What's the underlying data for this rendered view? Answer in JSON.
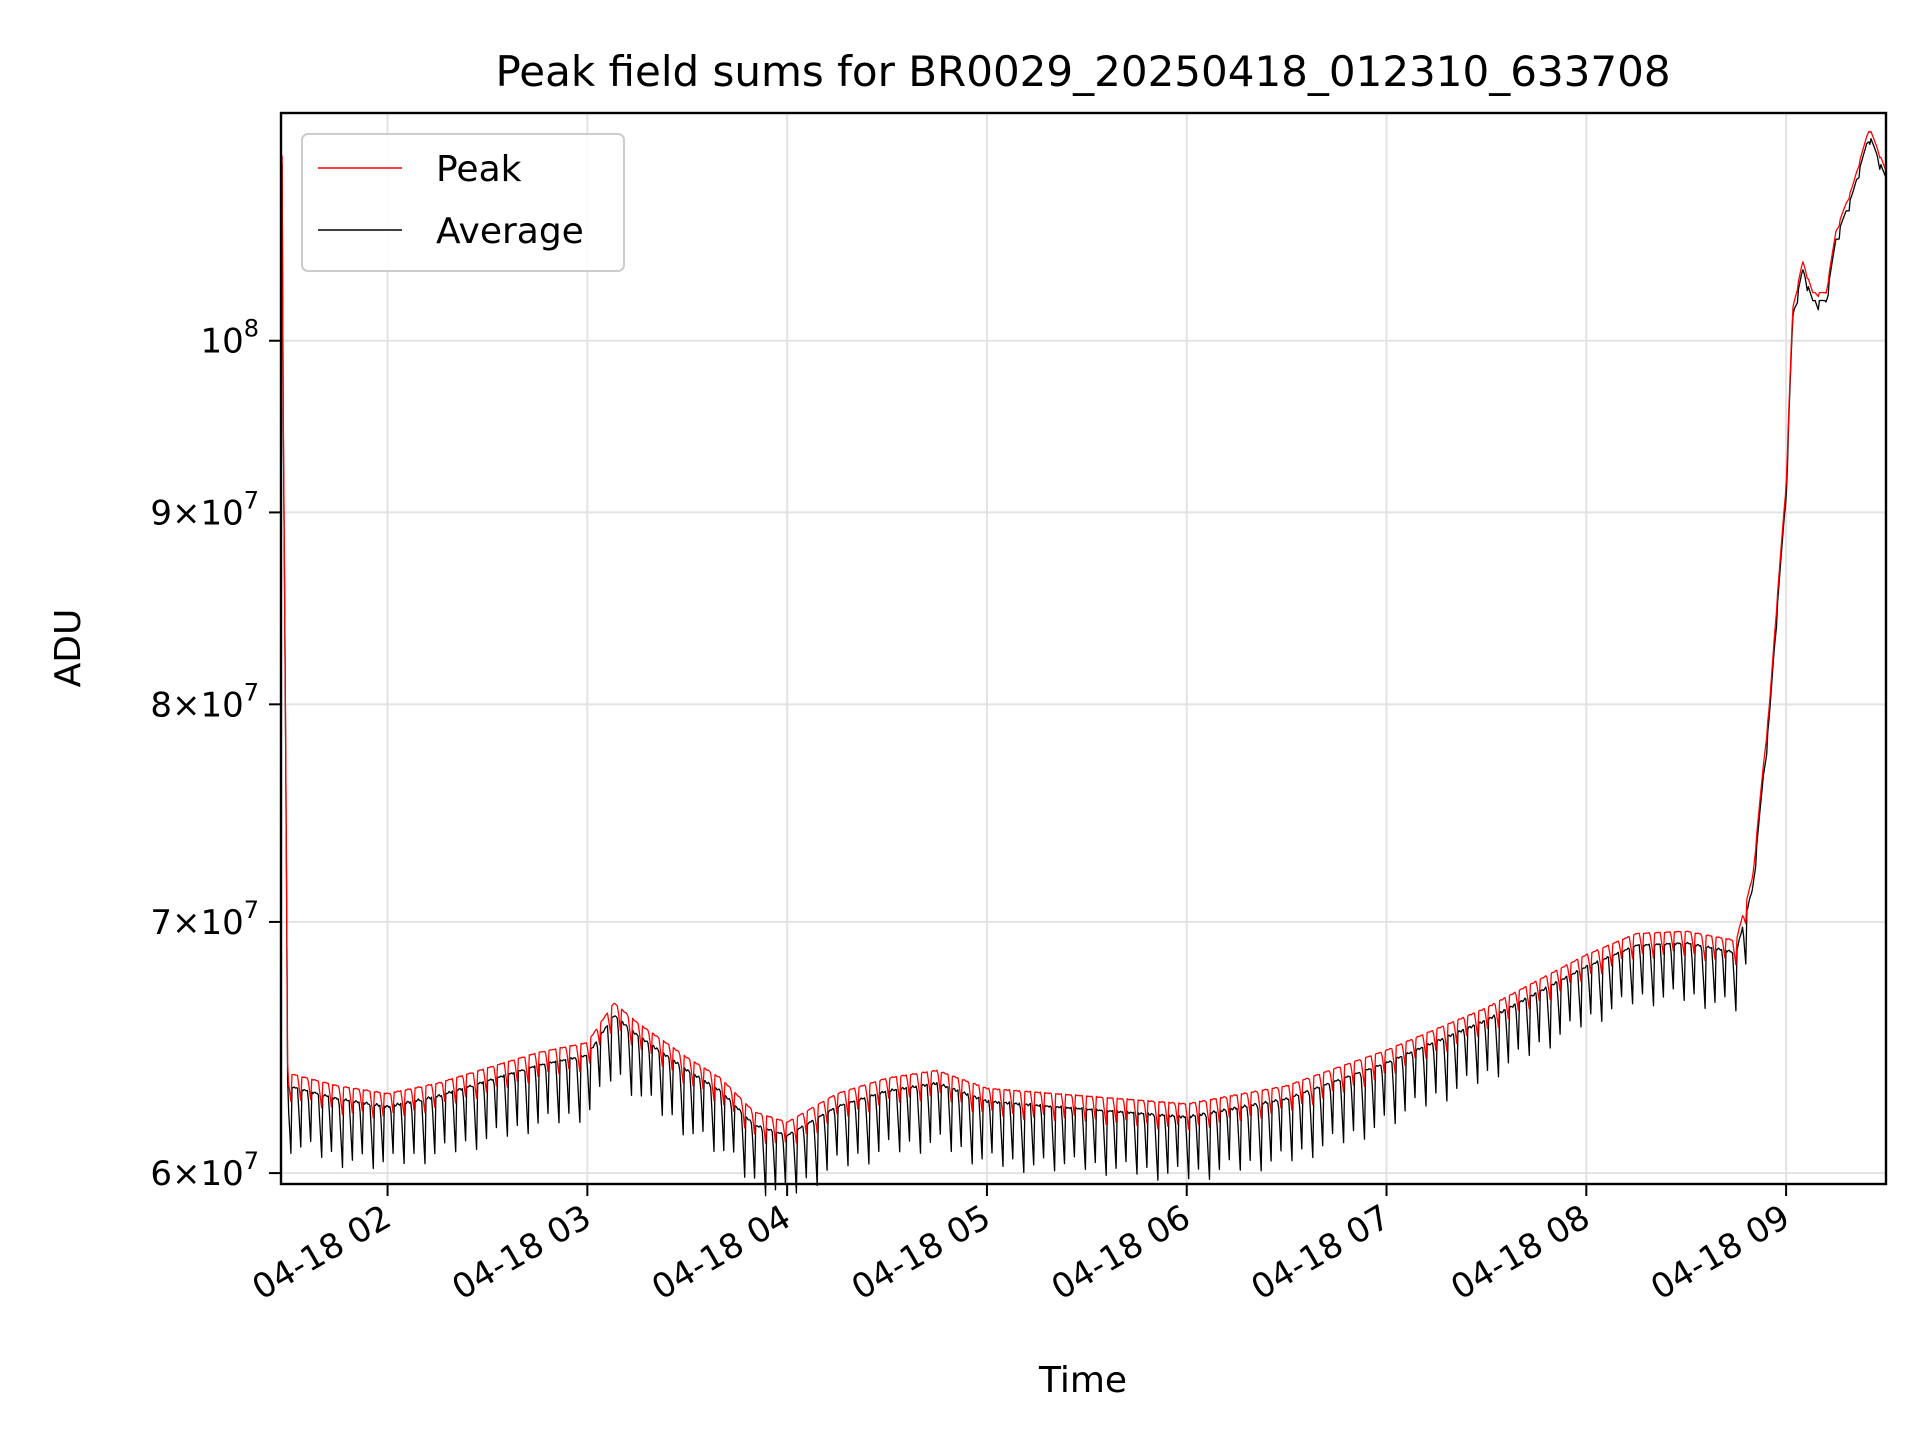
{
  "chart_data": {
    "type": "line",
    "title": "Peak field sums for BR0029_20250418_012310_633708",
    "xlabel": "Time",
    "ylabel": "ADU",
    "yscale": "log",
    "xlim": [
      "2025-04-18 01:28",
      "2025-04-18 09:30"
    ],
    "ylim": [
      59600000,
      115000000
    ],
    "grid": true,
    "legend_position": "upper-left",
    "x_ticks": [
      {
        "t": "2025-04-18 02:00",
        "label": "04-18 02"
      },
      {
        "t": "2025-04-18 03:00",
        "label": "04-18 03"
      },
      {
        "t": "2025-04-18 04:00",
        "label": "04-18 04"
      },
      {
        "t": "2025-04-18 05:00",
        "label": "04-18 05"
      },
      {
        "t": "2025-04-18 06:00",
        "label": "04-18 06"
      },
      {
        "t": "2025-04-18 07:00",
        "label": "04-18 07"
      },
      {
        "t": "2025-04-18 08:00",
        "label": "04-18 08"
      },
      {
        "t": "2025-04-18 09:00",
        "label": "04-18 09"
      }
    ],
    "y_ticks": [
      {
        "value": 60000000,
        "mantissa": "6",
        "exponent": "7"
      },
      {
        "value": 70000000,
        "mantissa": "7",
        "exponent": "7"
      },
      {
        "value": 80000000,
        "mantissa": "8",
        "exponent": "7"
      },
      {
        "value": 90000000,
        "mantissa": "9",
        "exponent": "7"
      },
      {
        "value": 100000000,
        "mantissa": "",
        "exponent": "8"
      }
    ],
    "series": [
      {
        "name": "Peak",
        "color": "#ff0000",
        "trend_x": [
          "2025-04-18 01:28",
          "2025-04-18 01:30",
          "2025-04-18 01:45",
          "2025-04-18 02:00",
          "2025-04-18 02:15",
          "2025-04-18 02:30",
          "2025-04-18 02:45",
          "2025-04-18 03:00",
          "2025-04-18 03:08",
          "2025-04-18 03:15",
          "2025-04-18 03:30",
          "2025-04-18 03:40",
          "2025-04-18 03:50",
          "2025-04-18 04:00",
          "2025-04-18 04:15",
          "2025-04-18 04:30",
          "2025-04-18 04:45",
          "2025-04-18 05:00",
          "2025-04-18 05:30",
          "2025-04-18 06:00",
          "2025-04-18 06:30",
          "2025-04-18 07:00",
          "2025-04-18 07:30",
          "2025-04-18 08:00",
          "2025-04-18 08:15",
          "2025-04-18 08:30",
          "2025-04-18 08:45",
          "2025-04-18 08:50",
          "2025-04-18 08:55",
          "2025-04-18 09:00",
          "2025-04-18 09:02",
          "2025-04-18 09:05",
          "2025-04-18 09:08",
          "2025-04-18 09:12",
          "2025-04-18 09:15",
          "2025-04-18 09:20",
          "2025-04-18 09:25",
          "2025-04-18 09:30"
        ],
        "trend_y": [
          112000000,
          63800000,
          63300000,
          63000000,
          63400000,
          64000000,
          64600000,
          65000000,
          66600000,
          65800000,
          64400000,
          63600000,
          62300000,
          61900000,
          63000000,
          63600000,
          63900000,
          63200000,
          62900000,
          62600000,
          63300000,
          64700000,
          66400000,
          68600000,
          69500000,
          69600000,
          69200000,
          72000000,
          80000000,
          91500000,
          102000000,
          105000000,
          103000000,
          103000000,
          107000000,
          110000000,
          114000000,
          111000000
        ],
        "oscillation": 1100000
      },
      {
        "name": "Average",
        "color": "#000000",
        "trend_x": [
          "2025-04-18 01:28",
          "2025-04-18 01:30",
          "2025-04-18 01:45",
          "2025-04-18 02:00",
          "2025-04-18 02:15",
          "2025-04-18 02:30",
          "2025-04-18 02:45",
          "2025-04-18 03:00",
          "2025-04-18 03:08",
          "2025-04-18 03:15",
          "2025-04-18 03:30",
          "2025-04-18 03:40",
          "2025-04-18 03:50",
          "2025-04-18 04:00",
          "2025-04-18 04:15",
          "2025-04-18 04:30",
          "2025-04-18 04:45",
          "2025-04-18 05:00",
          "2025-04-18 05:30",
          "2025-04-18 06:00",
          "2025-04-18 06:30",
          "2025-04-18 07:00",
          "2025-04-18 07:30",
          "2025-04-18 08:00",
          "2025-04-18 08:15",
          "2025-04-18 08:30",
          "2025-04-18 08:45",
          "2025-04-18 08:50",
          "2025-04-18 08:55",
          "2025-04-18 09:00",
          "2025-04-18 09:02",
          "2025-04-18 09:05",
          "2025-04-18 09:08",
          "2025-04-18 09:12",
          "2025-04-18 09:15",
          "2025-04-18 09:20",
          "2025-04-18 09:25",
          "2025-04-18 09:30"
        ],
        "trend_y": [
          111500000,
          63300000,
          62800000,
          62500000,
          62900000,
          63500000,
          64100000,
          64500000,
          66100000,
          65300000,
          63900000,
          63100000,
          61800000,
          61400000,
          62500000,
          63100000,
          63400000,
          62700000,
          62400000,
          62100000,
          62800000,
          64200000,
          65900000,
          68100000,
          69000000,
          69100000,
          68700000,
          71500000,
          79500000,
          91000000,
          101500000,
          104500000,
          102500000,
          102500000,
          106500000,
          109500000,
          113500000,
          110500000
        ],
        "oscillation": 2600000
      }
    ]
  }
}
